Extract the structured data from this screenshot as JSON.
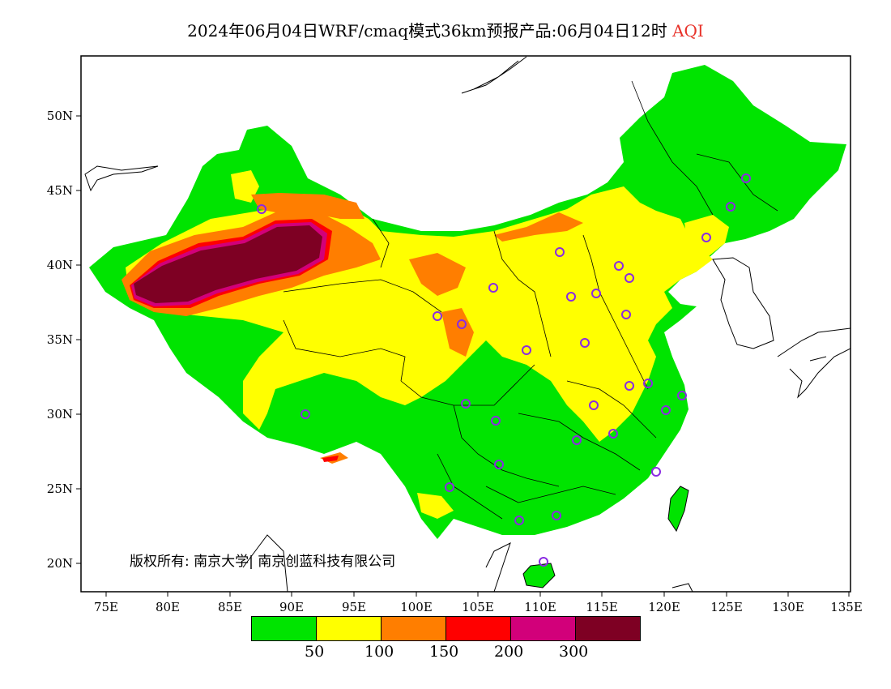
{
  "title": {
    "main": "2024年06月04日WRF/cmaq模式36km预报产品:06月04日12时",
    "variable": "AQI"
  },
  "axes": {
    "lat_labels": [
      "50N",
      "45N",
      "40N",
      "35N",
      "30N",
      "25N",
      "20N"
    ],
    "lon_labels": [
      "75E",
      "80E",
      "85E",
      "90E",
      "95E",
      "100E",
      "105E",
      "110E",
      "115E",
      "120E",
      "125E",
      "130E",
      "135E"
    ]
  },
  "legend": {
    "colors": [
      "#00e400",
      "#ffff00",
      "#ff7e00",
      "#ff0000",
      "#d2007a",
      "#7e0023"
    ],
    "labels": [
      "50",
      "100",
      "150",
      "200",
      "300"
    ]
  },
  "copyright": "版权所有: 南京大学| 南京创蓝科技有限公司",
  "colors": {
    "good": "#00e400",
    "moderate": "#ffff00",
    "usg": "#ff7e00",
    "unhealthy": "#ff0000",
    "very_unhealthy": "#d2007a",
    "hazardous": "#7e0023",
    "station_marker": "#8a2be2"
  }
}
